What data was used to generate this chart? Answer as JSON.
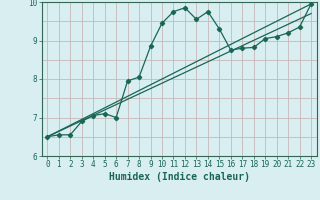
{
  "xlabel": "Humidex (Indice chaleur)",
  "bg_color": "#d8eef0",
  "grid_color": "#c8b8b8",
  "line_color": "#1a6655",
  "spine_color": "#336655",
  "xlim": [
    -0.5,
    23.5
  ],
  "ylim": [
    6,
    10
  ],
  "xticks": [
    0,
    1,
    2,
    3,
    4,
    5,
    6,
    7,
    8,
    9,
    10,
    11,
    12,
    13,
    14,
    15,
    16,
    17,
    18,
    19,
    20,
    21,
    22,
    23
  ],
  "yticks": [
    6,
    7,
    8,
    9,
    10
  ],
  "wavy_x": [
    0,
    1,
    2,
    3,
    4,
    5,
    6,
    7,
    8,
    9,
    10,
    11,
    12,
    13,
    14,
    15,
    16,
    17,
    18,
    19,
    20,
    21,
    22,
    23
  ],
  "wavy_y": [
    6.5,
    6.55,
    6.55,
    6.9,
    7.05,
    7.1,
    7.0,
    7.95,
    8.05,
    8.85,
    9.45,
    9.75,
    9.85,
    9.55,
    9.75,
    9.3,
    8.75,
    8.8,
    8.82,
    9.05,
    9.1,
    9.2,
    9.35,
    9.95
  ],
  "line1_x": [
    0,
    23
  ],
  "line1_y": [
    6.5,
    9.95
  ],
  "line2_x": [
    0,
    23
  ],
  "line2_y": [
    6.5,
    9.7
  ],
  "xlabel_fontsize": 7,
  "tick_fontsize": 5.5
}
